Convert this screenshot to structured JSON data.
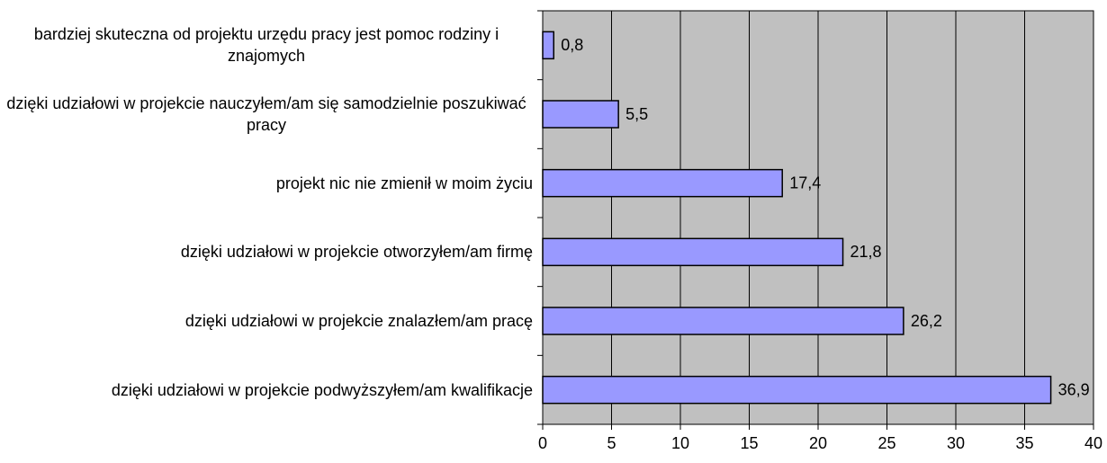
{
  "chart_data": {
    "type": "bar",
    "orientation": "horizontal",
    "categories": [
      "bardziej skuteczna od projektu urzędu pracy jest pomoc rodziny i znajomych",
      "dzięki udziałowi w projekcie nauczyłem/am się samodzielnie poszukiwać pracy",
      "projekt nic nie zmienił w moim życiu",
      "dzięki udziałowi w projekcie otworzyłem/am firmę",
      "dzięki udziałowi w projekcie znalazłem/am pracę",
      "dzięki udziałowi w projekcie podwyższyłem/am kwalifikacje"
    ],
    "values": [
      0.8,
      5.5,
      17.4,
      21.8,
      26.2,
      36.9
    ],
    "value_labels": [
      "0,8",
      "5,5",
      "17,4",
      "21,8",
      "26,2",
      "36,9"
    ],
    "color": "#9999ff",
    "plot_background": "#c0c0c0",
    "xlim": [
      0,
      40
    ],
    "xticks": [
      0,
      5,
      10,
      15,
      20,
      25,
      30,
      35,
      40
    ],
    "grid": true
  }
}
